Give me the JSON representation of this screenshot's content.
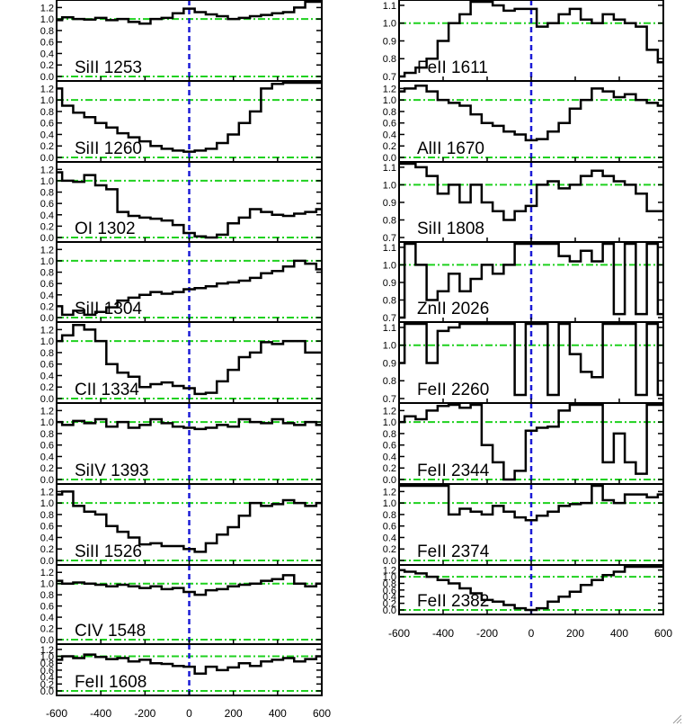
{
  "colors": {
    "spectrum": "#000000",
    "zero_velocity": "#1a1ad6",
    "reference": "#1fd11f"
  },
  "chart_data": {
    "type": "line",
    "xlim": [
      -600,
      600
    ],
    "x_ticks": [
      -600,
      -400,
      -200,
      0,
      200,
      400,
      600
    ],
    "reference_lines": {
      "vertical_x": 0,
      "horizontal_y": [
        0.0,
        1.0
      ]
    },
    "panels": [
      {
        "name": "SiII 1253",
        "ylim": [
          0,
          1.3
        ],
        "y_ticks": [
          "0.0",
          "0.2",
          "0.4",
          "0.6",
          "0.8",
          "1.0",
          "1.2"
        ],
        "x": [
          -600,
          -550,
          -500,
          -450,
          -400,
          -350,
          -300,
          -250,
          -200,
          -150,
          -100,
          -50,
          0,
          50,
          100,
          150,
          200,
          250,
          300,
          350,
          400,
          450,
          500,
          550,
          600
        ],
        "y": [
          0.98,
          1.03,
          1.0,
          0.99,
          1.02,
          0.98,
          1.0,
          0.95,
          0.92,
          1.0,
          1.02,
          1.1,
          1.18,
          1.12,
          1.08,
          1.05,
          1.0,
          1.02,
          1.05,
          1.07,
          1.1,
          1.12,
          1.2,
          1.3,
          1.3
        ]
      },
      {
        "name": "SiII 1260",
        "ylim": [
          0,
          1.3
        ],
        "y_ticks": [
          "0.0",
          "0.2",
          "0.4",
          "0.6",
          "0.8",
          "1.0",
          "1.2"
        ],
        "x": [
          -600,
          -550,
          -500,
          -450,
          -400,
          -350,
          -300,
          -250,
          -200,
          -150,
          -100,
          -50,
          0,
          50,
          100,
          150,
          200,
          250,
          300,
          350,
          400,
          450,
          500,
          550,
          600
        ],
        "y": [
          1.2,
          0.9,
          0.78,
          0.7,
          0.6,
          0.52,
          0.42,
          0.35,
          0.28,
          0.2,
          0.15,
          0.12,
          0.1,
          0.12,
          0.15,
          0.25,
          0.4,
          0.6,
          0.8,
          1.2,
          1.28,
          1.3,
          1.3,
          1.3,
          1.3
        ]
      },
      {
        "name": "OI 1302",
        "ylim": [
          0,
          1.3
        ],
        "y_ticks": [
          "0.0",
          "0.2",
          "0.4",
          "0.6",
          "0.8",
          "1.0",
          "1.2"
        ],
        "x": [
          -600,
          -550,
          -500,
          -450,
          -400,
          -350,
          -300,
          -250,
          -200,
          -150,
          -100,
          -50,
          0,
          50,
          100,
          150,
          200,
          250,
          300,
          350,
          400,
          450,
          500,
          550,
          600
        ],
        "y": [
          1.15,
          1.0,
          0.98,
          1.1,
          0.92,
          0.85,
          0.45,
          0.38,
          0.35,
          0.33,
          0.3,
          0.22,
          0.08,
          0.02,
          0.0,
          0.05,
          0.25,
          0.35,
          0.5,
          0.45,
          0.4,
          0.38,
          0.42,
          0.45,
          0.5
        ]
      },
      {
        "name": "SiII 1304",
        "ylim": [
          0,
          1.3
        ],
        "y_ticks": [
          "0.0",
          "0.2",
          "0.4",
          "0.6",
          "0.8",
          "1.0",
          "1.2"
        ],
        "x": [
          -600,
          -550,
          -500,
          -450,
          -400,
          -350,
          -300,
          -250,
          -200,
          -150,
          -100,
          -50,
          0,
          50,
          100,
          150,
          200,
          250,
          300,
          350,
          400,
          450,
          500,
          550,
          600
        ],
        "y": [
          0.2,
          0.05,
          0.12,
          0.05,
          0.1,
          0.18,
          0.3,
          0.35,
          0.4,
          0.45,
          0.42,
          0.45,
          0.5,
          0.52,
          0.55,
          0.6,
          0.62,
          0.65,
          0.7,
          0.78,
          0.82,
          0.9,
          1.0,
          0.95,
          0.85
        ]
      },
      {
        "name": "CII 1334",
        "ylim": [
          0,
          1.3
        ],
        "y_ticks": [
          "0.0",
          "0.2",
          "0.4",
          "0.6",
          "0.8",
          "1.0",
          "1.2"
        ],
        "x": [
          -600,
          -550,
          -500,
          -450,
          -400,
          -350,
          -300,
          -250,
          -200,
          -150,
          -100,
          -50,
          0,
          50,
          100,
          150,
          200,
          250,
          300,
          350,
          400,
          450,
          500,
          550,
          600
        ],
        "y": [
          1.0,
          1.1,
          1.28,
          1.2,
          1.0,
          0.6,
          0.45,
          0.38,
          0.2,
          0.25,
          0.28,
          0.22,
          0.18,
          0.08,
          0.1,
          0.3,
          0.5,
          0.72,
          0.8,
          0.98,
          0.95,
          1.0,
          1.0,
          0.8,
          0.8
        ]
      },
      {
        "name": "SiIV 1393",
        "ylim": [
          0,
          1.3
        ],
        "y_ticks": [
          "0.0",
          "0.2",
          "0.4",
          "0.6",
          "0.8",
          "1.0",
          "1.2"
        ],
        "x": [
          -600,
          -550,
          -500,
          -450,
          -400,
          -350,
          -300,
          -250,
          -200,
          -150,
          -100,
          -50,
          0,
          50,
          100,
          150,
          200,
          250,
          300,
          350,
          400,
          450,
          500,
          550,
          600
        ],
        "y": [
          1.0,
          0.95,
          1.02,
          0.98,
          1.05,
          0.92,
          1.0,
          0.9,
          0.95,
          1.05,
          0.98,
          0.92,
          0.9,
          0.88,
          0.9,
          0.95,
          0.92,
          1.05,
          1.0,
          0.98,
          1.05,
          0.98,
          0.95,
          1.0,
          0.95
        ]
      },
      {
        "name": "SiII 1526",
        "ylim": [
          0,
          1.3
        ],
        "y_ticks": [
          "0.0",
          "0.2",
          "0.4",
          "0.6",
          "0.8",
          "1.0",
          "1.2"
        ],
        "x": [
          -600,
          -550,
          -500,
          -450,
          -400,
          -350,
          -300,
          -250,
          -200,
          -150,
          -100,
          -50,
          0,
          50,
          100,
          150,
          200,
          250,
          300,
          350,
          400,
          450,
          500,
          550,
          600
        ],
        "y": [
          1.15,
          1.2,
          0.95,
          0.85,
          0.8,
          0.6,
          0.5,
          0.4,
          0.28,
          0.3,
          0.25,
          0.25,
          0.2,
          0.15,
          0.3,
          0.45,
          0.58,
          0.78,
          1.0,
          0.95,
          0.98,
          1.05,
          1.0,
          0.95,
          1.0
        ]
      },
      {
        "name": "CIV 1548",
        "ylim": [
          0,
          1.3
        ],
        "y_ticks": [
          "0.0",
          "0.2",
          "0.4",
          "0.6",
          "0.8",
          "1.0",
          "1.2"
        ],
        "x": [
          -600,
          -550,
          -500,
          -450,
          -400,
          -350,
          -300,
          -250,
          -200,
          -150,
          -100,
          -50,
          0,
          50,
          100,
          150,
          200,
          250,
          300,
          350,
          400,
          450,
          500,
          550,
          600
        ],
        "y": [
          1.05,
          1.0,
          1.02,
          1.0,
          0.98,
          0.95,
          0.98,
          0.95,
          0.92,
          0.95,
          0.9,
          0.92,
          0.85,
          0.8,
          0.88,
          0.9,
          0.95,
          0.98,
          1.0,
          1.05,
          1.08,
          1.15,
          1.0,
          0.95,
          1.0
        ]
      },
      {
        "name": "FeII 1608",
        "ylim": [
          0,
          1.3
        ],
        "y_ticks": [
          "0.0",
          "0.2",
          "0.4",
          "0.6",
          "0.8",
          "1.0",
          "1.2"
        ],
        "x": [
          -600,
          -550,
          -500,
          -450,
          -400,
          -350,
          -300,
          -250,
          -200,
          -150,
          -100,
          -50,
          0,
          50,
          100,
          150,
          200,
          250,
          300,
          350,
          400,
          450,
          500,
          550,
          600
        ],
        "y": [
          0.9,
          1.0,
          0.95,
          1.05,
          0.98,
          0.92,
          0.95,
          0.85,
          0.9,
          0.8,
          0.78,
          0.72,
          0.7,
          0.5,
          0.7,
          0.6,
          0.68,
          0.8,
          0.72,
          0.85,
          0.9,
          0.95,
          0.85,
          0.92,
          1.0
        ]
      },
      {
        "name": "FeII 1611",
        "ylim": [
          0.7,
          1.12
        ],
        "y_ticks": [
          "0.7",
          "0.8",
          "0.9",
          "1.0",
          "1.1"
        ],
        "x": [
          -600,
          -550,
          -500,
          -450,
          -400,
          -350,
          -300,
          -250,
          -200,
          -150,
          -100,
          -50,
          0,
          50,
          100,
          150,
          200,
          250,
          300,
          350,
          400,
          450,
          500,
          550,
          600
        ],
        "y": [
          0.7,
          0.72,
          0.75,
          0.8,
          0.9,
          1.0,
          1.05,
          1.12,
          1.12,
          1.1,
          1.07,
          1.08,
          1.08,
          0.98,
          1.0,
          1.05,
          1.08,
          1.02,
          1.0,
          1.05,
          1.02,
          1.0,
          0.98,
          0.85,
          0.78
        ]
      },
      {
        "name": "AlII 1670",
        "ylim": [
          0,
          1.3
        ],
        "y_ticks": [
          "0.0",
          "0.2",
          "0.4",
          "0.6",
          "0.8",
          "1.0",
          "1.2"
        ],
        "x": [
          -600,
          -550,
          -500,
          -450,
          -400,
          -350,
          -300,
          -250,
          -200,
          -150,
          -100,
          -50,
          0,
          50,
          100,
          150,
          200,
          250,
          300,
          350,
          400,
          450,
          500,
          550,
          600
        ],
        "y": [
          1.15,
          1.2,
          1.25,
          1.15,
          1.0,
          0.95,
          0.9,
          0.75,
          0.6,
          0.55,
          0.45,
          0.4,
          0.3,
          0.32,
          0.45,
          0.6,
          0.85,
          1.0,
          1.2,
          1.15,
          1.05,
          1.1,
          1.0,
          0.95,
          0.9
        ]
      },
      {
        "name": "SiII 1808",
        "ylim": [
          0.7,
          1.12
        ],
        "y_ticks": [
          "0.7",
          "0.8",
          "0.9",
          "1.0",
          "1.1"
        ],
        "x": [
          -600,
          -550,
          -500,
          -450,
          -400,
          -350,
          -300,
          -250,
          -200,
          -150,
          -100,
          -50,
          0,
          50,
          100,
          150,
          200,
          250,
          300,
          350,
          400,
          450,
          500,
          550,
          600
        ],
        "y": [
          1.12,
          1.12,
          1.1,
          1.05,
          0.95,
          1.0,
          0.9,
          1.0,
          0.9,
          0.85,
          0.8,
          0.85,
          0.88,
          1.0,
          1.02,
          0.98,
          1.0,
          1.05,
          1.08,
          1.05,
          1.02,
          1.0,
          0.95,
          0.85,
          0.85
        ]
      },
      {
        "name": "ZnII 2026",
        "ylim": [
          0.7,
          1.12
        ],
        "y_ticks": [
          "0.7",
          "0.8",
          "0.9",
          "1.0",
          "1.1"
        ],
        "x": [
          -600,
          -550,
          -500,
          -450,
          -400,
          -350,
          -300,
          -250,
          -200,
          -150,
          -100,
          -50,
          0,
          50,
          100,
          150,
          200,
          250,
          300,
          350,
          400,
          450,
          500,
          550,
          600
        ],
        "y": [
          0.7,
          1.12,
          1.0,
          0.8,
          0.85,
          0.95,
          0.85,
          0.92,
          1.0,
          0.95,
          1.0,
          1.12,
          1.12,
          1.12,
          1.12,
          1.05,
          1.02,
          1.08,
          1.02,
          1.12,
          0.72,
          1.12,
          0.72,
          1.12,
          0.72
        ]
      },
      {
        "name": "FeII 2260",
        "ylim": [
          0.7,
          1.12
        ],
        "y_ticks": [
          "0.7",
          "0.8",
          "0.9",
          "1.0",
          "1.1"
        ],
        "x": [
          -600,
          -550,
          -500,
          -450,
          -400,
          -350,
          -300,
          -250,
          -200,
          -150,
          -100,
          -50,
          0,
          50,
          100,
          150,
          200,
          250,
          300,
          350,
          400,
          450,
          500,
          550,
          600
        ],
        "y": [
          0.9,
          1.12,
          1.12,
          0.9,
          1.08,
          1.1,
          1.12,
          1.12,
          1.12,
          1.12,
          1.12,
          0.72,
          1.12,
          1.12,
          0.72,
          1.12,
          0.95,
          0.85,
          0.82,
          1.12,
          1.12,
          1.12,
          0.72,
          1.12,
          0.72
        ]
      },
      {
        "name": "FeII 2344",
        "ylim": [
          0,
          1.3
        ],
        "y_ticks": [
          "0.0",
          "0.2",
          "0.4",
          "0.6",
          "0.8",
          "1.0",
          "1.2"
        ],
        "x": [
          -600,
          -550,
          -500,
          -450,
          -400,
          -350,
          -300,
          -250,
          -200,
          -150,
          -100,
          -50,
          0,
          50,
          100,
          150,
          200,
          250,
          300,
          350,
          400,
          450,
          500,
          550,
          600
        ],
        "y": [
          1.0,
          1.1,
          1.05,
          1.2,
          1.28,
          1.3,
          1.25,
          1.3,
          0.6,
          0.3,
          0.0,
          0.15,
          0.85,
          0.9,
          0.92,
          1.2,
          1.3,
          1.3,
          1.3,
          0.3,
          0.8,
          0.3,
          0.1,
          1.3,
          1.3
        ]
      },
      {
        "name": "FeII 2374",
        "ylim": [
          0,
          1.3
        ],
        "y_ticks": [
          "0.0",
          "0.2",
          "0.4",
          "0.6",
          "0.8",
          "1.0",
          "1.2"
        ],
        "x": [
          -600,
          -550,
          -500,
          -450,
          -400,
          -350,
          -300,
          -250,
          -200,
          -150,
          -100,
          -50,
          0,
          50,
          100,
          150,
          200,
          250,
          300,
          350,
          400,
          450,
          500,
          550,
          600
        ],
        "y": [
          1.3,
          1.3,
          1.3,
          1.3,
          1.3,
          0.8,
          0.9,
          0.85,
          0.8,
          0.95,
          0.85,
          0.75,
          0.7,
          0.78,
          0.85,
          0.95,
          0.98,
          1.0,
          1.3,
          1.05,
          1.0,
          1.15,
          1.15,
          1.1,
          1.15
        ]
      },
      {
        "name": "FeII 2382",
        "ylim": [
          0,
          1.3
        ],
        "y_ticks": [
          "0.0",
          "0.2",
          "0.4",
          "0.6",
          "0.8",
          "1.0",
          "1.2"
        ],
        "x": [
          -600,
          -550,
          -500,
          -450,
          -400,
          -350,
          -300,
          -250,
          -200,
          -150,
          -100,
          -50,
          0,
          50,
          100,
          150,
          200,
          250,
          300,
          350,
          400,
          450,
          500,
          550,
          600
        ],
        "y": [
          1.2,
          1.15,
          1.1,
          1.0,
          0.9,
          0.8,
          0.65,
          0.5,
          0.3,
          0.25,
          0.15,
          0.05,
          0.0,
          0.05,
          0.25,
          0.4,
          0.55,
          0.75,
          0.9,
          1.05,
          1.15,
          1.3,
          1.3,
          1.3,
          1.3
        ]
      }
    ]
  }
}
